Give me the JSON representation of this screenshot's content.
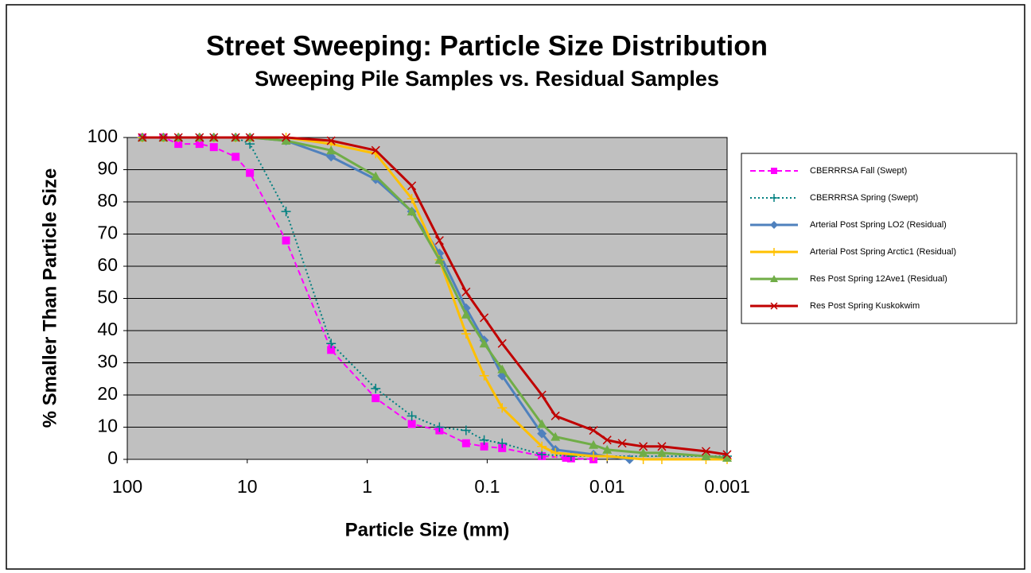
{
  "chart_data": {
    "type": "line",
    "title": "Street Sweeping: Particle Size Distribution",
    "subtitle": "Sweeping Pile Samples vs. Residual Samples",
    "x_label": "Particle Size (mm)",
    "y_label": "% Smaller Than Particle Size",
    "xscale": "log",
    "xlim": [
      100,
      0.001
    ],
    "xticks": [
      100,
      10,
      1,
      0.1,
      0.01,
      0.001
    ],
    "ylim": [
      0,
      100
    ],
    "yticks": [
      0,
      10,
      20,
      30,
      40,
      50,
      60,
      70,
      80,
      90,
      100
    ],
    "grid": true,
    "plot_background": "#c0c0c0",
    "legend": "right",
    "series": [
      {
        "name": "CBERRRSA Fall (Swept)",
        "color": "#ff00ff",
        "dash": "dashed",
        "marker": "square",
        "x": [
          75,
          50,
          37.5,
          25,
          19,
          12.5,
          9.5,
          4.75,
          2,
          0.85,
          0.425,
          0.25,
          0.15,
          0.106,
          0.075,
          0.035,
          0.022,
          0.02,
          0.013
        ],
        "values": [
          100,
          100,
          98,
          98,
          97,
          94,
          89,
          68,
          34,
          19,
          11,
          9,
          5,
          4,
          3.5,
          1,
          0.5,
          0.3,
          0
        ]
      },
      {
        "name": "CBERRRSA Spring (Swept)",
        "color": "#008080",
        "dash": "dotted",
        "marker": "plus",
        "x": [
          75,
          50,
          37.5,
          25,
          19,
          12.5,
          9.5,
          4.75,
          2,
          0.85,
          0.425,
          0.25,
          0.15,
          0.106,
          0.075,
          0.035,
          0.02,
          0.01,
          0.001
        ],
        "values": [
          100,
          100,
          100,
          100,
          100,
          100,
          98,
          77,
          36,
          22,
          13.5,
          10,
          9,
          6,
          5,
          1.5,
          1,
          1,
          1
        ]
      },
      {
        "name": "Arterial Post Spring LO2 (Residual)",
        "color": "#4f81bd",
        "dash": "solid",
        "marker": "diamond",
        "x": [
          75,
          50,
          37.5,
          25,
          19,
          12.5,
          9.5,
          4.75,
          2,
          0.85,
          0.425,
          0.25,
          0.15,
          0.106,
          0.075,
          0.035,
          0.027,
          0.013,
          0.0065
        ],
        "values": [
          100,
          100,
          100,
          100,
          100,
          100,
          100,
          99,
          94,
          87,
          77,
          64,
          47,
          37,
          26,
          8,
          3,
          1.5,
          0
        ]
      },
      {
        "name": "Arterial Post Spring Arctic1 (Residual)",
        "color": "#ffc000",
        "dash": "solid",
        "marker": "plus",
        "x": [
          75,
          50,
          37.5,
          25,
          19,
          12.5,
          9.5,
          4.75,
          2,
          0.85,
          0.425,
          0.25,
          0.15,
          0.106,
          0.075,
          0.035,
          0.027,
          0.013,
          0.01,
          0.005,
          0.0035,
          0.0015,
          0.001
        ],
        "values": [
          100,
          100,
          100,
          100,
          100,
          100,
          100,
          100,
          98,
          95,
          81,
          62,
          39,
          26,
          16,
          4,
          2,
          1,
          1,
          0,
          0,
          0,
          0
        ]
      },
      {
        "name": "Res Post Spring 12Ave1 (Residual)",
        "color": "#70ad47",
        "dash": "solid",
        "marker": "triangle",
        "x": [
          75,
          50,
          37.5,
          25,
          19,
          12.5,
          9.5,
          4.75,
          2,
          0.85,
          0.425,
          0.25,
          0.15,
          0.106,
          0.075,
          0.035,
          0.027,
          0.013,
          0.01,
          0.005,
          0.0035,
          0.0015,
          0.001
        ],
        "values": [
          100,
          100,
          100,
          100,
          100,
          100,
          100,
          99,
          96,
          88,
          77,
          62,
          45,
          36,
          28,
          11,
          7,
          4.5,
          3,
          2,
          2,
          1,
          0.5
        ]
      },
      {
        "name": "Res Post Spring Kuskokwim",
        "color": "#c00000",
        "dash": "solid",
        "marker": "x",
        "x": [
          75,
          50,
          37.5,
          25,
          19,
          12.5,
          9.5,
          4.75,
          2,
          0.85,
          0.425,
          0.25,
          0.15,
          0.106,
          0.075,
          0.035,
          0.027,
          0.013,
          0.01,
          0.0075,
          0.005,
          0.0035,
          0.0015,
          0.001
        ],
        "values": [
          100,
          100,
          100,
          100,
          100,
          100,
          100,
          100,
          99,
          96,
          85,
          68,
          52,
          44,
          36,
          20,
          13.5,
          9,
          6,
          5,
          4,
          4,
          2.5,
          1.5
        ]
      }
    ]
  }
}
